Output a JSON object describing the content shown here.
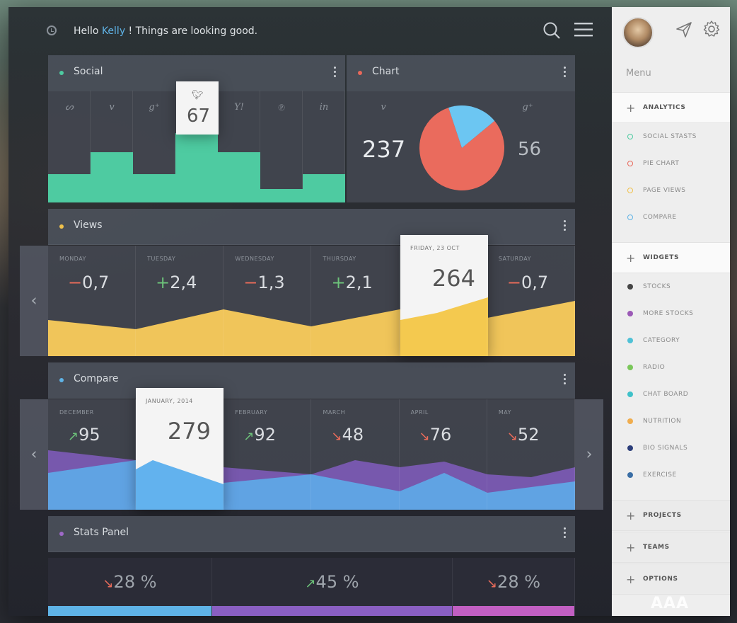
{
  "header": {
    "greeting_prefix": "Hello ",
    "user_name": "Kelly",
    "greeting_suffix": " ! Things are looking good."
  },
  "social": {
    "title": "Social",
    "dot_color": "#4ecba1",
    "networks": [
      {
        "icon": "stumbleupon-icon",
        "glyph": "ᔕ",
        "level": 0.25
      },
      {
        "icon": "vimeo-icon",
        "glyph": "v",
        "level": 0.45
      },
      {
        "icon": "google-plus-icon",
        "glyph": "g⁺",
        "level": 0.25
      },
      {
        "icon": "twitter-icon",
        "glyph": "t",
        "level": 0.85,
        "highlight": true,
        "value": "67"
      },
      {
        "icon": "yahoo-icon",
        "glyph": "Y!",
        "level": 0.45
      },
      {
        "icon": "pinterest-icon",
        "glyph": "℗",
        "level": 0.12
      },
      {
        "icon": "linkedin-icon",
        "glyph": "in",
        "level": 0.25
      }
    ]
  },
  "chart": {
    "title": "Chart",
    "dot_color": "#e8685a",
    "left_icon": "v",
    "right_icon": "g⁺",
    "left_value": "237",
    "right_value": "56",
    "pie": [
      {
        "value": 237,
        "color": "#ea6b5d"
      },
      {
        "value": 56,
        "color": "#6cc6f2"
      }
    ]
  },
  "views": {
    "title": "Views",
    "dot_color": "#f0c14b",
    "days": [
      {
        "label": "MONDAY",
        "sign": "−",
        "value": "0,7",
        "dir": "neg"
      },
      {
        "label": "TUESDAY",
        "sign": "+",
        "value": "2,4",
        "dir": "pos"
      },
      {
        "label": "WEDNESDAY",
        "sign": "−",
        "value": "1,3",
        "dir": "neg"
      },
      {
        "label": "THURSDAY",
        "sign": "+",
        "value": "2,1",
        "dir": "pos"
      },
      {
        "label": "FRIDAY, 23 OCT",
        "value": "264",
        "highlight": true
      },
      {
        "label": "SATURDAY",
        "sign": "−",
        "value": "0,7",
        "dir": "neg"
      }
    ]
  },
  "compare": {
    "title": "Compare",
    "dot_color": "#5fb3e6",
    "months": [
      {
        "label": "DECEMBER",
        "arrow": "↗",
        "value": "95",
        "dir": "up"
      },
      {
        "label": "JANUARY, 2014",
        "value": "279",
        "highlight": true
      },
      {
        "label": "FEBRUARY",
        "arrow": "↗",
        "value": "92",
        "dir": "up"
      },
      {
        "label": "MARCH",
        "arrow": "↘",
        "value": "48",
        "dir": "dn"
      },
      {
        "label": "APRIL",
        "arrow": "↘",
        "value": "76",
        "dir": "dn"
      },
      {
        "label": "MAY",
        "arrow": "↘",
        "value": "52",
        "dir": "dn"
      }
    ]
  },
  "stats": {
    "title": "Stats Panel",
    "dot_color": "#a069c8",
    "cells": [
      {
        "arrow": "↘",
        "value": "28 %",
        "color": "#5fb3e6"
      },
      {
        "arrow": "↗",
        "value": "45 %",
        "color": "#8a5fc2"
      },
      {
        "arrow": "↘",
        "value": "28 %",
        "color": "#c25fc2"
      }
    ]
  },
  "sidebar": {
    "menu_title": "Menu",
    "sections": {
      "analytics": "ANALYTICS",
      "widgets": "WIDGETS",
      "projects": "PROJECTS",
      "teams": "TEAMS",
      "options": "OPTIONS"
    },
    "analytics_items": [
      {
        "label": "SOCIAL STASTS",
        "color": "#4ecba1"
      },
      {
        "label": "PIE CHART",
        "color": "#e8685a"
      },
      {
        "label": "PAGE VIEWS",
        "color": "#f0c14b"
      },
      {
        "label": "COMPARE",
        "color": "#5fb3e6"
      }
    ],
    "widget_items": [
      {
        "label": "STOCKS",
        "color": "#444444"
      },
      {
        "label": "MORE STOCKS",
        "color": "#9b59b6"
      },
      {
        "label": "CATEGORY",
        "color": "#4fc1d6"
      },
      {
        "label": "RADIO",
        "color": "#7ac75a"
      },
      {
        "label": "CHAT BOARD",
        "color": "#3fc1c9"
      },
      {
        "label": "NUTRITION",
        "color": "#f0ad4e"
      },
      {
        "label": "BIO SIGNALS",
        "color": "#2c3e7a"
      },
      {
        "label": "EXERCISE",
        "color": "#3a6ea5"
      }
    ]
  },
  "watermark": "AAA"
}
